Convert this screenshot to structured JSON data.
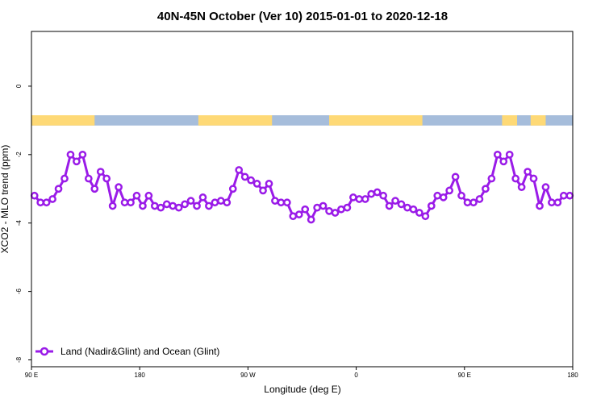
{
  "chart_data": {
    "type": "line",
    "title": "40N-45N October (Ver 10)   2015-01-01 to 2020-12-18",
    "xlabel": "Longitude (deg E)",
    "ylabel": "XCO2 - MLO trend (ppm)",
    "xlim": [
      90,
      450
    ],
    "ylim": [
      -8.2,
      1.6
    ],
    "x_ticks": [
      {
        "value": 90,
        "label": "90 E"
      },
      {
        "value": 162,
        "label": "180"
      },
      {
        "value": 234,
        "label": "90 W"
      },
      {
        "value": 306,
        "label": "0"
      },
      {
        "value": 378,
        "label": "90 E"
      },
      {
        "value": 450,
        "label": "180"
      }
    ],
    "y_ticks": [
      {
        "value": 0,
        "label": "0"
      },
      {
        "value": -2,
        "label": "-2"
      },
      {
        "value": -4,
        "label": "-4"
      },
      {
        "value": -6,
        "label": "-6"
      },
      {
        "value": -8,
        "label": "-8"
      }
    ],
    "grid": false,
    "legend_position": "bottom-left",
    "land_ocean_strip": {
      "y_range": [
        -1.15,
        -0.85
      ],
      "ocean_color": "#a6bddb",
      "land_color": "#fed976",
      "land_segments": [
        [
          90,
          132
        ],
        [
          201,
          250
        ],
        [
          288,
          350
        ],
        [
          403,
          413
        ],
        [
          422,
          432
        ]
      ]
    },
    "series": [
      {
        "name": "Land (Nadir&Glint) and Ocean (Glint)",
        "color": "#9a1be8",
        "x": [
          92,
          96,
          100,
          104,
          108,
          112,
          116,
          120,
          124,
          128,
          132,
          136,
          140,
          144,
          148,
          152,
          156,
          160,
          164,
          168,
          172,
          176,
          180,
          184,
          188,
          192,
          196,
          200,
          204,
          208,
          212,
          216,
          220,
          224,
          228,
          232,
          236,
          240,
          244,
          248,
          252,
          256,
          260,
          264,
          268,
          272,
          276,
          280,
          284,
          288,
          292,
          296,
          300,
          304,
          308,
          312,
          316,
          320,
          324,
          328,
          332,
          336,
          340,
          344,
          348,
          352,
          356,
          360,
          364,
          368,
          372,
          376,
          380,
          384,
          388,
          392,
          396,
          400,
          404,
          408,
          412,
          416,
          420,
          424,
          428,
          432,
          436,
          440,
          444,
          448
        ],
        "values": [
          -3.2,
          -3.4,
          -3.4,
          -3.3,
          -3.0,
          -2.7,
          -2.0,
          -2.2,
          -2.0,
          -2.7,
          -3.0,
          -2.5,
          -2.7,
          -3.5,
          -2.95,
          -3.4,
          -3.4,
          -3.2,
          -3.5,
          -3.2,
          -3.5,
          -3.55,
          -3.45,
          -3.5,
          -3.55,
          -3.45,
          -3.35,
          -3.5,
          -3.25,
          -3.5,
          -3.4,
          -3.35,
          -3.4,
          -3.0,
          -2.45,
          -2.65,
          -2.75,
          -2.85,
          -3.05,
          -2.85,
          -3.35,
          -3.4,
          -3.4,
          -3.8,
          -3.75,
          -3.6,
          -3.9,
          -3.55,
          -3.5,
          -3.65,
          -3.7,
          -3.6,
          -3.55,
          -3.25,
          -3.3,
          -3.3,
          -3.15,
          -3.1,
          -3.2,
          -3.5,
          -3.35,
          -3.45,
          -3.55,
          -3.6,
          -3.7,
          -3.8,
          -3.5,
          -3.2,
          -3.25,
          -3.05,
          -2.65,
          -3.2,
          -3.4,
          -3.4,
          -3.3,
          -3.0,
          -2.7,
          -2.0,
          -2.2,
          -2.0,
          -2.7,
          -2.95,
          -2.5,
          -2.7,
          -3.5,
          -2.95,
          -3.4,
          -3.4,
          -3.2,
          -3.2
        ]
      }
    ]
  }
}
